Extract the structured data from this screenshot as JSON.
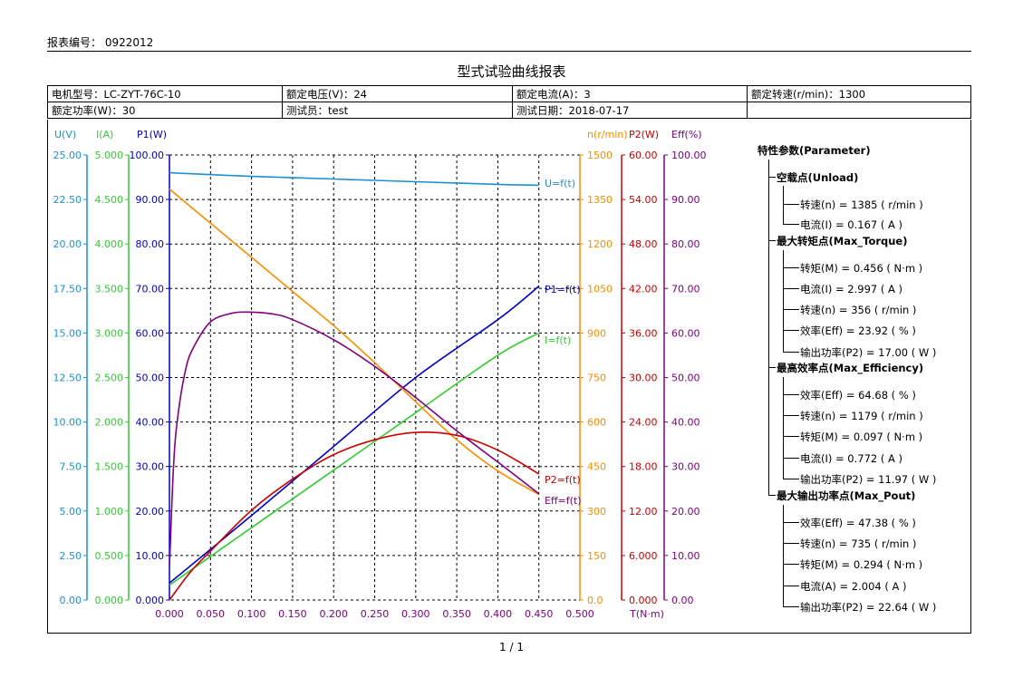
{
  "header": {
    "report_no": "报表编号： 0922012",
    "title": "型式试验曲线报表",
    "page": "1 / 1"
  },
  "info_table": [
    [
      "电机型号：LC-ZYT-76C-10",
      "额定电压(V)：24",
      "额定电流(A)：3",
      "额定转速(r/min)：1300"
    ],
    [
      "额定功率(W)：30",
      "测试员：test",
      "测试日期：2018-07-17",
      ""
    ]
  ],
  "colors": {
    "U": "#1e90d6",
    "I": "#33cc33",
    "P1": "#0000cc",
    "n": "#ff8c00",
    "P2": "#cc0000",
    "Eff": "#800080"
  },
  "chart_data": {
    "type": "line",
    "xlabel": "T(N·m)",
    "x_ticks": [
      "0.000",
      "0.050",
      "0.100",
      "0.150",
      "0.200",
      "0.250",
      "0.300",
      "0.350",
      "0.400",
      "0.450",
      "0.500"
    ],
    "xlim": [
      0,
      0.5
    ],
    "axes": [
      {
        "key": "U",
        "label": "U(V)",
        "ylim": [
          0,
          25
        ],
        "ticks": [
          "0.00",
          "2.50",
          "5.00",
          "7.50",
          "10.00",
          "12.50",
          "15.00",
          "17.50",
          "20.00",
          "22.50",
          "25.00"
        ],
        "side": "left"
      },
      {
        "key": "I",
        "label": "I(A)",
        "ylim": [
          0,
          5
        ],
        "ticks": [
          "0.000",
          "0.500",
          "1.000",
          "1.500",
          "2.000",
          "2.500",
          "3.000",
          "3.500",
          "4.000",
          "4.500",
          "5.000"
        ],
        "side": "left"
      },
      {
        "key": "P1",
        "label": "P1(W)",
        "ylim": [
          0,
          100
        ],
        "ticks": [
          "0.000",
          "10.00",
          "20.00",
          "30.00",
          "40.00",
          "50.00",
          "60.00",
          "70.00",
          "80.00",
          "90.00",
          "100.00"
        ],
        "side": "left"
      },
      {
        "key": "n",
        "label": "n(r/min)",
        "ylim": [
          0,
          1500
        ],
        "ticks": [
          "0.0",
          "150",
          "300",
          "450",
          "600",
          "750",
          "900",
          "1050",
          "1200",
          "1350",
          "1500"
        ],
        "side": "right"
      },
      {
        "key": "P2",
        "label": "P2(W)",
        "ylim": [
          0,
          60
        ],
        "ticks": [
          "0.000",
          "6.000",
          "12.00",
          "18.00",
          "24.00",
          "30.00",
          "36.00",
          "42.00",
          "48.00",
          "54.00",
          "60.00"
        ],
        "side": "right"
      },
      {
        "key": "Eff",
        "label": "Eff(%)",
        "ylim": [
          0,
          100
        ],
        "ticks": [
          "0.00",
          "10.00",
          "20.00",
          "30.00",
          "40.00",
          "50.00",
          "60.00",
          "70.00",
          "80.00",
          "90.00",
          "100.00"
        ],
        "side": "right"
      }
    ],
    "series": [
      {
        "name": "U=f(t)",
        "axis": "U",
        "x": [
          0,
          0.1,
          0.2,
          0.3,
          0.4,
          0.45
        ],
        "y": [
          24.0,
          23.8,
          23.65,
          23.5,
          23.35,
          23.3
        ]
      },
      {
        "name": "I=f(t)",
        "axis": "I",
        "x": [
          0,
          0.1,
          0.2,
          0.3,
          0.4,
          0.45
        ],
        "y": [
          0.167,
          0.813,
          1.459,
          2.105,
          2.751,
          3.0
        ]
      },
      {
        "name": "P1=f(t)",
        "axis": "P1",
        "x": [
          0,
          0.1,
          0.2,
          0.3,
          0.4,
          0.45
        ],
        "y": [
          3.8,
          19.0,
          34.5,
          50.0,
          63.0,
          70.5
        ]
      },
      {
        "name": "n=f(t)",
        "axis": "n",
        "x": [
          0,
          0.05,
          0.1,
          0.15,
          0.2,
          0.25,
          0.3,
          0.35,
          0.4,
          0.45
        ],
        "y": [
          1385,
          1270,
          1155,
          1040,
          925,
          800,
          668,
          540,
          435,
          356
        ]
      },
      {
        "name": "P2=f(t)",
        "axis": "P2",
        "x": [
          0,
          0.025,
          0.05,
          0.1,
          0.15,
          0.2,
          0.25,
          0.3,
          0.35,
          0.4,
          0.45
        ],
        "y": [
          0,
          3.7,
          6.6,
          12.1,
          16.3,
          19.6,
          21.6,
          22.6,
          22.2,
          20.2,
          17.0
        ]
      },
      {
        "name": "Eff=f(t)",
        "axis": "Eff",
        "x": [
          0,
          0.005,
          0.01,
          0.02,
          0.03,
          0.05,
          0.075,
          0.097,
          0.125,
          0.15,
          0.2,
          0.25,
          0.3,
          0.35,
          0.4,
          0.45
        ],
        "y": [
          7.5,
          30,
          41,
          52,
          57,
          62.5,
          64.4,
          64.7,
          64.3,
          63,
          58.5,
          52.5,
          45.5,
          38,
          31,
          23.9
        ]
      }
    ]
  },
  "params": {
    "title": "特性参数(Parameter)",
    "groups": [
      {
        "label": "空载点(Unload)",
        "items": [
          "转速(n)      =  1385 ( r/min )",
          "电流(I)     =  0.167 ( A )"
        ]
      },
      {
        "label": "最大转矩点(Max_Torque)",
        "items": [
          "转矩(M)     =  0.456 ( N·m )",
          "电流(I)     =  2.997 ( A )",
          "转速(n)      =  356  ( r/min )",
          "效率(Eff)     =  23.92 ( % )",
          "输出功率(P2)     =  17.00 ( W )"
        ]
      },
      {
        "label": "最高效率点(Max_Efficiency)",
        "items": [
          "效率(Eff)     =  64.68 ( % )",
          "转速(n)      =  1179 ( r/min )",
          "转矩(M)     =  0.097 ( N·m )",
          "电流(I)     =  0.772 ( A )",
          "输出功率(P2)     =  11.97 ( W )"
        ]
      },
      {
        "label": "最大输出功率点(Max_Pout)",
        "items": [
          "效率(Eff)     =  47.38 ( % )",
          "转速(n)      =  735  ( r/min )",
          "转矩(M)     =  0.294 ( N·m )",
          "电流(A)     =  2.004 ( A )",
          "输出功率(P2)     =  22.64 ( W )"
        ]
      }
    ]
  }
}
